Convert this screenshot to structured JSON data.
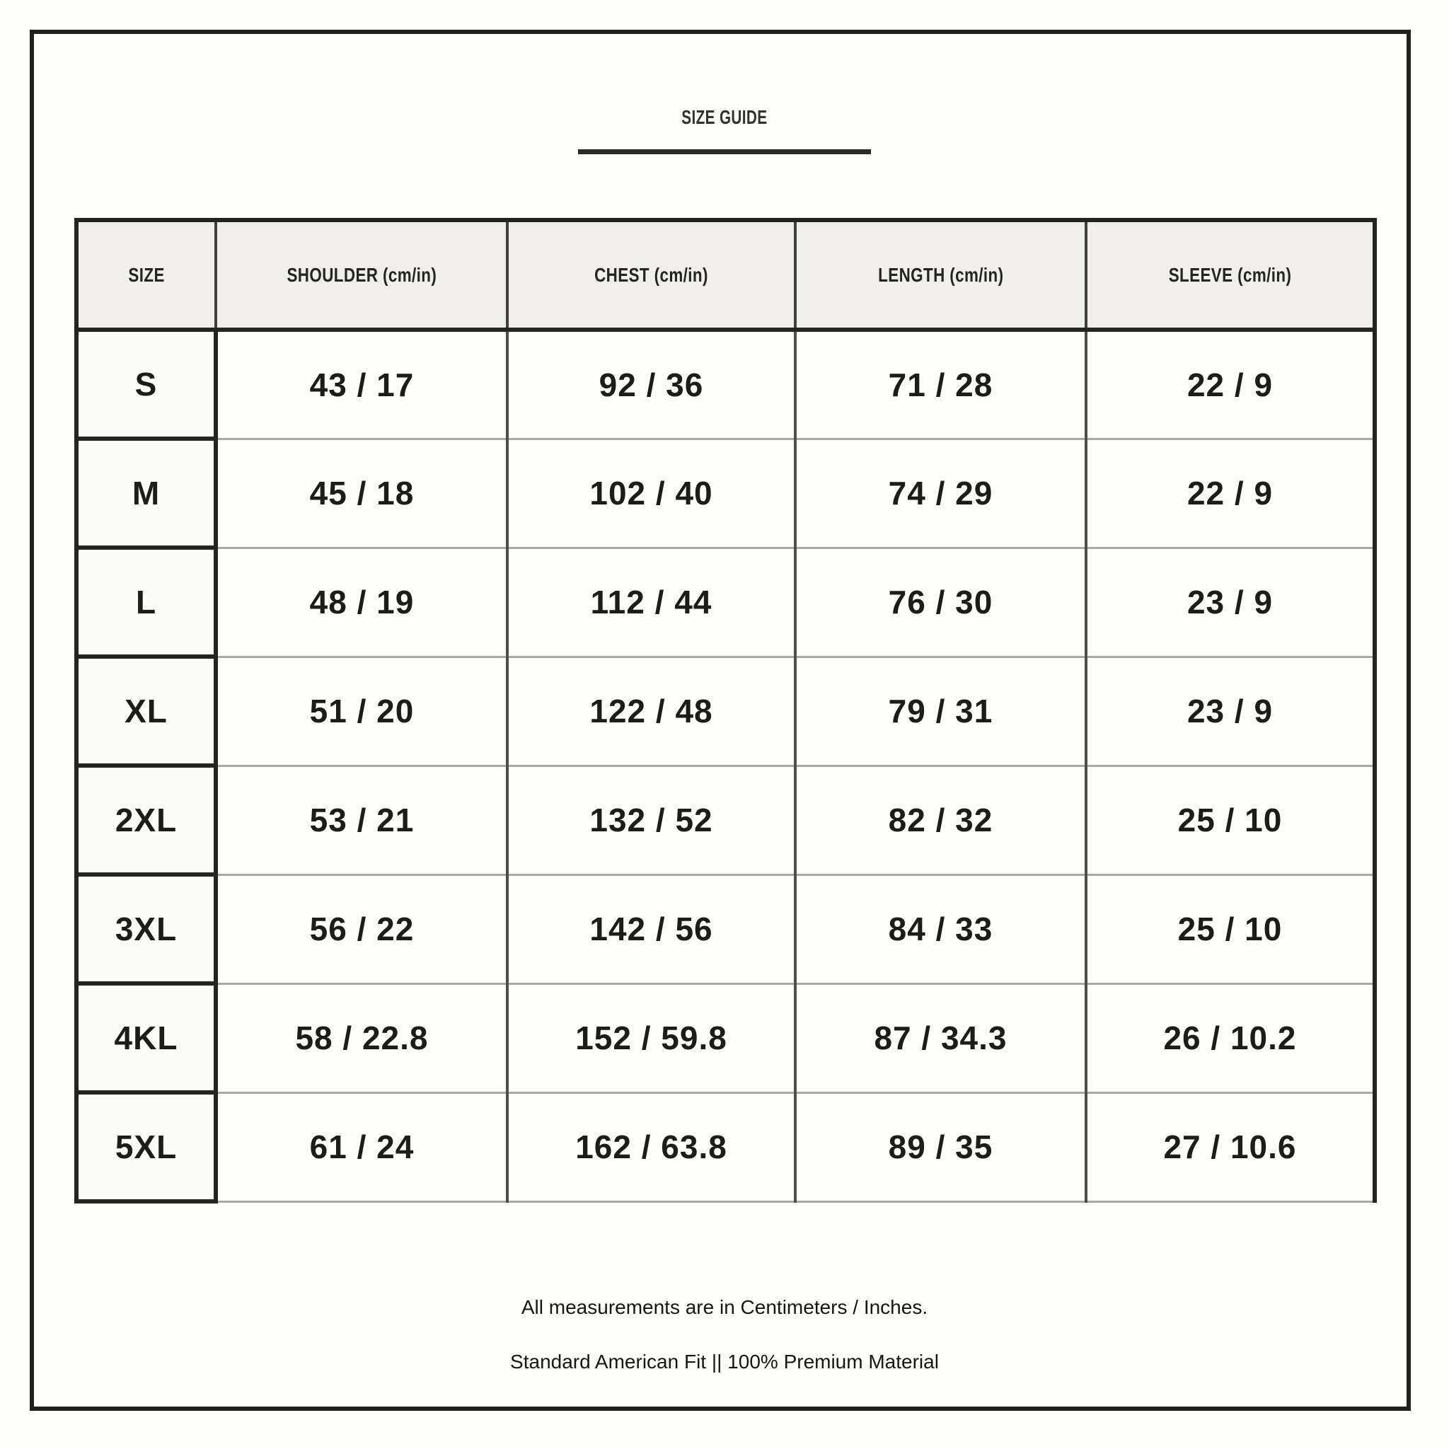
{
  "title": "SIZE GUIDE",
  "table": {
    "columns": [
      "SIZE",
      "SHOULDER (cm/in)",
      "CHEST (cm/in)",
      "LENGTH (cm/in)",
      "SLEEVE (cm/in)"
    ],
    "rows": [
      {
        "size": "S",
        "shoulder": "43 / 17",
        "chest": "92 / 36",
        "length": "71 / 28",
        "sleeve": "22 / 9"
      },
      {
        "size": "M",
        "shoulder": "45 / 18",
        "chest": "102 / 40",
        "length": "74 / 29",
        "sleeve": "22 / 9"
      },
      {
        "size": "L",
        "shoulder": "48 / 19",
        "chest": "112 / 44",
        "length": "76 / 30",
        "sleeve": "23 / 9"
      },
      {
        "size": "XL",
        "shoulder": "51 / 20",
        "chest": "122 / 48",
        "length": "79 / 31",
        "sleeve": "23 / 9"
      },
      {
        "size": "2XL",
        "shoulder": "53 / 21",
        "chest": "132 / 52",
        "length": "82 / 32",
        "sleeve": "25 / 10"
      },
      {
        "size": "3XL",
        "shoulder": "56 / 22",
        "chest": "142 / 56",
        "length": "84 / 33",
        "sleeve": "25 / 10"
      },
      {
        "size": "4KL",
        "shoulder": "58 / 22.8",
        "chest": "152 / 59.8",
        "length": "87 / 34.3",
        "sleeve": "26 / 10.2"
      },
      {
        "size": "5XL",
        "shoulder": "61 / 24",
        "chest": "162 / 63.8",
        "length": "89 / 35",
        "sleeve": "27 / 10.6"
      }
    ]
  },
  "footer": {
    "measurement_note": "All measurements are in Centimeters / Inches.",
    "fit_note": "Standard American Fit || 100% Premium Material"
  },
  "colors": {
    "page_background": "#fcfcfa",
    "frame_border": "#20201e",
    "table_border_dark": "#242422",
    "grid_line_medium": "#4e4e4c",
    "row_divider_light": "#a8a8a6",
    "header_fill": "#f0efed",
    "text": "#1b1b19"
  },
  "chart_data": {
    "type": "table",
    "title": "SIZE GUIDE",
    "columns": [
      "SIZE",
      "SHOULDER (cm/in)",
      "CHEST (cm/in)",
      "LENGTH (cm/in)",
      "SLEEVE (cm/in)"
    ],
    "rows": [
      [
        "S",
        "43 / 17",
        "92 / 36",
        "71 / 28",
        "22 / 9"
      ],
      [
        "M",
        "45 / 18",
        "102 / 40",
        "74 / 29",
        "22 / 9"
      ],
      [
        "L",
        "48 / 19",
        "112 / 44",
        "76 / 30",
        "23 / 9"
      ],
      [
        "XL",
        "51 / 20",
        "122 / 48",
        "79 / 31",
        "23 / 9"
      ],
      [
        "2XL",
        "53 / 21",
        "132 / 52",
        "82 / 32",
        "25 / 10"
      ],
      [
        "3XL",
        "56 / 22",
        "142 / 56",
        "84 / 33",
        "25 / 10"
      ],
      [
        "4KL",
        "58 / 22.8",
        "152 / 59.8",
        "87 / 34.3",
        "26 / 10.2"
      ],
      [
        "5XL",
        "61 / 24",
        "162 / 63.8",
        "89 / 35",
        "27 / 10.6"
      ]
    ],
    "notes": [
      "All measurements are in Centimeters / Inches.",
      "Standard American Fit || 100% Premium Material"
    ]
  }
}
